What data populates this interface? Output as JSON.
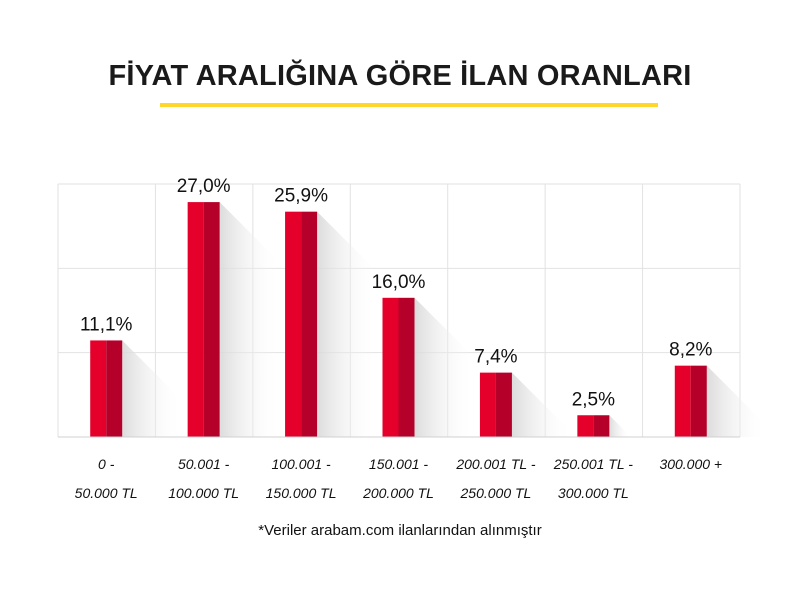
{
  "chart_data": {
    "type": "bar",
    "title": "FİYAT ARALIĞINA GÖRE İLAN ORANLARI",
    "categories": [
      [
        "0 -",
        "50.000 TL"
      ],
      [
        "50.001 -",
        "100.000 TL"
      ],
      [
        "100.001 -",
        "150.000 TL"
      ],
      [
        "150.001 -",
        "200.000 TL"
      ],
      [
        "200.001 TL -",
        "250.000 TL"
      ],
      [
        "250.001 TL -",
        "300.000 TL"
      ],
      [
        "300.000 +",
        ""
      ]
    ],
    "values": [
      11.1,
      27.0,
      25.9,
      16.0,
      7.4,
      2.5,
      8.2
    ],
    "data_labels": [
      "11,1%",
      "27,0%",
      "25,9%",
      "16,0%",
      "7,4%",
      "2,5%",
      "8,2%"
    ],
    "unit": "%",
    "grid": true,
    "colors": {
      "bar_light": "#e4002b",
      "bar_dark": "#b5002a",
      "accent": "#ffd629"
    },
    "footnote": "*Veriler arabam.com ilanlarından alınmıştır"
  }
}
